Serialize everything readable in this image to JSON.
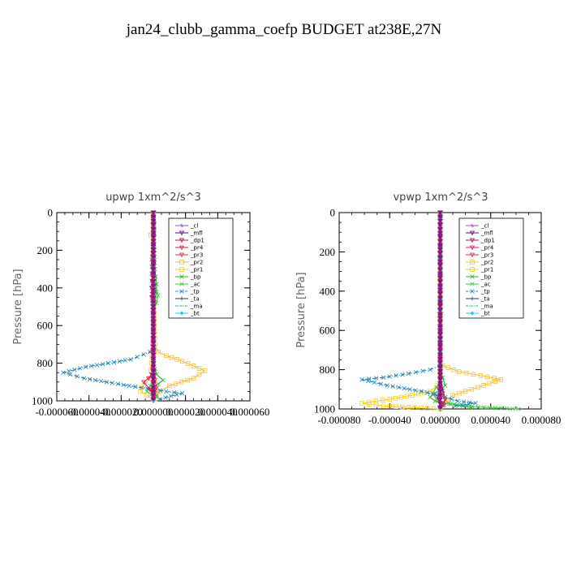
{
  "title": "jan24_clubb_gamma_coefp  BUDGET at238E,27N",
  "colors": {
    "_cl": "#9a4fd0",
    "_mfl": "#6a0a80",
    "_dp1": "#b8104e",
    "_pr4": "#d81a5a",
    "_pr3": "#e03040",
    "_pr2": "#f0c040",
    "_pr1": "#f4d21a",
    "_bp": "#30b030",
    "_ac": "#40c840",
    "_tp": "#2080b8",
    "_ta": "#1a3aa0",
    "_ma": "#28a8a8",
    "_bt": "#20d8e8"
  },
  "chart_data": [
    {
      "type": "line",
      "title": "upwp   1xm^2/s^3",
      "ylabel": "Pressure [hPa]",
      "xlim": [
        -6e-05,
        6e-05
      ],
      "ylim": [
        1000,
        0
      ],
      "xticks": [
        -6e-05,
        -4e-05,
        -2e-05,
        0,
        2e-05,
        4e-05,
        6e-05
      ],
      "xtick_labels": [
        "-0.000060",
        "-0.000040",
        "-0.000020",
        "0.000000",
        "0.000020",
        "0.000040",
        "0.000060"
      ],
      "yticks": [
        0,
        200,
        400,
        600,
        800,
        1000
      ],
      "ytick_labels": [
        "0",
        "200",
        "400",
        "600",
        "800",
        "1000"
      ],
      "legend": [
        "_cl",
        "_mfl",
        "_dp1",
        "_pr4",
        "_pr3",
        "_pr2",
        "_pr1",
        "_bp",
        "_ac",
        "_tp",
        "_ta",
        "_ma",
        "_bt"
      ],
      "legend_loc": "top-right",
      "series": [
        {
          "name": "_pr2",
          "x": [
            0,
            0,
            -1.5e-06,
            0,
            0,
            1e-06,
            3e-06,
            8e-06,
            1.8e-05,
            3.2e-05,
            2.5e-05,
            1e-05,
            4e-06,
            1e-06
          ],
          "y": [
            0,
            100,
            120,
            150,
            400,
            700,
            740,
            760,
            790,
            840,
            880,
            920,
            950,
            990
          ]
        },
        {
          "name": "_pr1",
          "x": [
            0,
            0,
            -1e-06,
            -2e-06,
            -6e-06,
            -8e-06,
            -4e-06,
            0
          ],
          "y": [
            0,
            600,
            800,
            880,
            920,
            950,
            970,
            990
          ]
        },
        {
          "name": "_bp",
          "x": [
            0,
            1e-06,
            2e-06,
            2e-06,
            1e-06,
            0,
            0,
            2e-06,
            6e-06,
            3e-06,
            -3e-06,
            2e-06
          ],
          "y": [
            0,
            300,
            380,
            420,
            460,
            500,
            800,
            860,
            890,
            910,
            940,
            970
          ]
        },
        {
          "name": "_ac",
          "x": [
            0,
            0,
            1e-06,
            3e-06,
            2e-06,
            0,
            0,
            -2e-06,
            -4e-06,
            2e-06
          ],
          "y": [
            0,
            350,
            400,
            440,
            480,
            520,
            880,
            920,
            950,
            980
          ]
        },
        {
          "name": "_tp",
          "x": [
            0,
            0,
            -1e-06,
            -1e-06,
            0,
            -2e-06,
            -1.4e-05,
            -4.2e-05,
            -5.6e-05,
            -4.3e-05,
            -1.5e-05,
            8e-06,
            1.8e-05,
            4e-06
          ],
          "y": [
            0,
            150,
            250,
            400,
            700,
            740,
            780,
            820,
            850,
            880,
            920,
            950,
            960,
            990
          ]
        },
        {
          "name": "_ta",
          "x": [
            0,
            0,
            0,
            -1e-06,
            -1e-06,
            0
          ],
          "y": [
            0,
            500,
            900,
            940,
            970,
            990
          ]
        },
        {
          "name": "_ma",
          "x": [
            0,
            1.5e-06,
            1.5e-06,
            0,
            0
          ],
          "y": [
            0,
            50,
            120,
            200,
            990
          ]
        },
        {
          "name": "_pr4",
          "x": [
            0,
            0,
            -1e-06,
            -3e-06,
            -6e-06,
            -2e-06,
            0
          ],
          "y": [
            0,
            800,
            860,
            880,
            900,
            940,
            980
          ]
        },
        {
          "name": "_pr3",
          "x": [
            0,
            0,
            1e-06,
            2e-06,
            1e-06,
            0
          ],
          "y": [
            0,
            850,
            890,
            930,
            960,
            990
          ]
        },
        {
          "name": "_dp1",
          "x": [
            0,
            0,
            -1e-06,
            -1e-06,
            0,
            0
          ],
          "y": [
            0,
            300,
            400,
            450,
            500,
            990
          ]
        },
        {
          "name": "_cl",
          "x": [
            0,
            0
          ],
          "y": [
            0,
            1000
          ]
        },
        {
          "name": "_mfl",
          "x": [
            0,
            0
          ],
          "y": [
            0,
            1000
          ]
        },
        {
          "name": "_bt",
          "x": [
            0,
            0
          ],
          "y": [
            0,
            1000
          ]
        }
      ]
    },
    {
      "type": "line",
      "title": "vpwp   1xm^2/s^3",
      "ylabel": "Pressure [hPa]",
      "xlim": [
        -8e-05,
        8e-05
      ],
      "ylim": [
        1000,
        0
      ],
      "xticks": [
        -8e-05,
        -4e-05,
        0,
        4e-05,
        8e-05
      ],
      "xtick_labels": [
        "-0.000080",
        "-0.000040",
        "0.000000",
        "0.000040",
        "0.000080"
      ],
      "yticks": [
        0,
        200,
        400,
        600,
        800,
        1000
      ],
      "ytick_labels": [
        "0",
        "200",
        "400",
        "600",
        "800",
        "1000"
      ],
      "legend": [
        "_cl",
        "_mfl",
        "_dp1",
        "_pr4",
        "_pr3",
        "_pr2",
        "_pr1",
        "_bp",
        "_ac",
        "_tp",
        "_ta",
        "_ma",
        "_bt"
      ],
      "legend_loc": "top-right",
      "series": [
        {
          "name": "_pr2",
          "x": [
            0,
            0,
            2e-06,
            1.5e-05,
            3.2e-05,
            4.8e-05,
            3e-05,
            1e-05,
            3e-06
          ],
          "y": [
            0,
            750,
            780,
            810,
            830,
            850,
            890,
            930,
            980
          ]
        },
        {
          "name": "_pr1",
          "x": [
            0,
            0,
            -2e-06,
            -8e-06,
            -2.2e-05,
            -4e-05,
            -6.2e-05,
            -4.5e-05,
            -1.5e-05,
            0
          ],
          "y": [
            0,
            850,
            880,
            910,
            930,
            950,
            970,
            985,
            995,
            1000
          ]
        },
        {
          "name": "_bp",
          "x": [
            0,
            0,
            2e-06,
            4e-06,
            1e-06,
            -4e-06,
            -8e-06,
            -4e-06,
            8e-06,
            1.8e-05,
            2.5e-05
          ],
          "y": [
            0,
            800,
            840,
            880,
            900,
            920,
            940,
            960,
            975,
            985,
            995
          ]
        },
        {
          "name": "_ac",
          "x": [
            0,
            0,
            -3e-06,
            -6e-06,
            -3e-06,
            2e-06,
            3e-05,
            6.2e-05
          ],
          "y": [
            0,
            860,
            890,
            920,
            950,
            970,
            990,
            1000
          ]
        },
        {
          "name": "_tp",
          "x": [
            0,
            0,
            -8e-06,
            -2.5e-05,
            -4.5e-05,
            -6.2e-05,
            -4.2e-05,
            -1.5e-05,
            4e-06,
            1.4e-05,
            2.8e-05,
            1.2e-05
          ],
          "y": [
            0,
            780,
            800,
            820,
            840,
            850,
            880,
            910,
            940,
            960,
            970,
            985
          ]
        },
        {
          "name": "_ta",
          "x": [
            0,
            0,
            2e-06,
            4e-06,
            2e-06,
            0
          ],
          "y": [
            0,
            850,
            900,
            950,
            980,
            1000
          ]
        },
        {
          "name": "_ma",
          "x": [
            0,
            1e-06,
            1e-06,
            0
          ],
          "y": [
            0,
            50,
            200,
            1000
          ]
        },
        {
          "name": "_pr4",
          "x": [
            0,
            0,
            -1e-06,
            -2e-06,
            2e-06,
            0
          ],
          "y": [
            0,
            870,
            900,
            940,
            970,
            1000
          ]
        },
        {
          "name": "_pr3",
          "x": [
            0,
            0,
            2e-06,
            4e-06,
            3e-06,
            0
          ],
          "y": [
            0,
            880,
            920,
            950,
            980,
            1000
          ]
        },
        {
          "name": "_dp1",
          "x": [
            0,
            0,
            -1e-06,
            0
          ],
          "y": [
            0,
            900,
            950,
            1000
          ]
        },
        {
          "name": "_cl",
          "x": [
            0,
            0
          ],
          "y": [
            0,
            1000
          ]
        },
        {
          "name": "_mfl",
          "x": [
            0,
            0
          ],
          "y": [
            0,
            1000
          ]
        },
        {
          "name": "_bt",
          "x": [
            0,
            0
          ],
          "y": [
            0,
            1000
          ]
        }
      ]
    }
  ]
}
